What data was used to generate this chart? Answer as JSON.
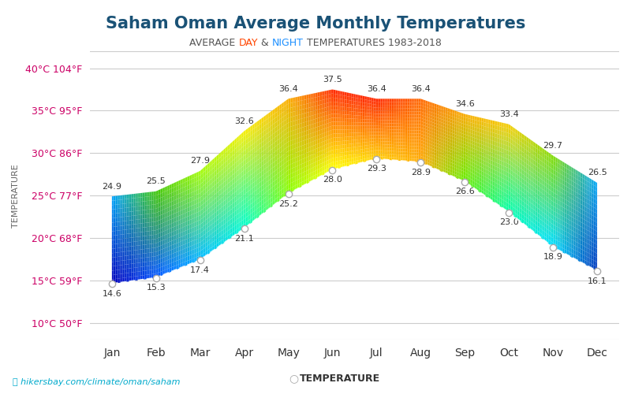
{
  "title": "Saham Oman Average Monthly Temperatures",
  "subtitle_parts": [
    "AVERAGE ",
    "DAY",
    " & ",
    "NIGHT",
    " TEMPERATURES 1983-2018"
  ],
  "subtitle_colors": [
    "#555555",
    "#ff4500",
    "#555555",
    "#1e90ff",
    "#555555"
  ],
  "months": [
    "Jan",
    "Feb",
    "Mar",
    "Apr",
    "May",
    "Jun",
    "Jul",
    "Aug",
    "Sep",
    "Oct",
    "Nov",
    "Dec"
  ],
  "high_temps": [
    24.9,
    25.5,
    27.9,
    32.6,
    36.4,
    37.5,
    36.4,
    36.4,
    34.6,
    33.4,
    29.7,
    26.5
  ],
  "low_temps": [
    14.6,
    15.3,
    17.4,
    21.1,
    25.2,
    28.0,
    29.3,
    28.9,
    26.6,
    23.0,
    18.9,
    16.1
  ],
  "y_ticks_c": [
    10,
    15,
    20,
    25,
    30,
    35,
    40
  ],
  "y_ticks_f": [
    50,
    59,
    68,
    77,
    86,
    95,
    104
  ],
  "y_labels_left": [
    "10°C 50°F",
    "15°C 59°F",
    "20°C 68°F",
    "25°C 77°F",
    "30°C 86°F",
    "35°C 95°F",
    "40°C 104°F"
  ],
  "ylim": [
    8,
    42
  ],
  "title_fontsize": 18,
  "subtitle_fontsize": 10,
  "axis_label": "TEMPERATURE",
  "legend_label": "TEMPERATURE",
  "watermark": "hikersbay.com/climate/oman/saham",
  "bg_color": "#ffffff",
  "grid_color": "#cccccc",
  "gradient_colors_top": [
    [
      0.0,
      "#00bfff"
    ],
    [
      0.083,
      "#00e600"
    ],
    [
      0.25,
      "#aaff00"
    ],
    [
      0.333,
      "#ffff00"
    ],
    [
      0.417,
      "#ffcc00"
    ],
    [
      0.5,
      "#ff8800"
    ],
    [
      0.583,
      "#ff2200"
    ],
    [
      0.667,
      "#ff2200"
    ],
    [
      0.75,
      "#ff8800"
    ],
    [
      0.833,
      "#ffcc00"
    ],
    [
      0.917,
      "#aaee00"
    ],
    [
      1.0,
      "#00aaff"
    ]
  ],
  "gradient_colors_bottom": [
    [
      0.0,
      "#0000cd"
    ],
    [
      0.083,
      "#0066ff"
    ],
    [
      0.25,
      "#00ccff"
    ],
    [
      0.333,
      "#00ffaa"
    ],
    [
      0.417,
      "#aaff00"
    ],
    [
      0.5,
      "#ffff00"
    ],
    [
      0.583,
      "#ffcc00"
    ],
    [
      0.667,
      "#ffaa00"
    ],
    [
      0.75,
      "#88ee00"
    ],
    [
      0.833,
      "#00ff88"
    ],
    [
      0.917,
      "#00eeff"
    ],
    [
      1.0,
      "#0044cc"
    ]
  ]
}
